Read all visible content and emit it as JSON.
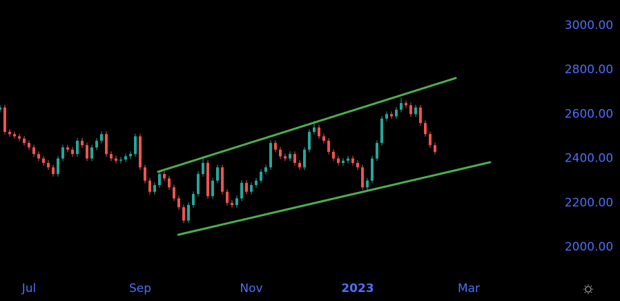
{
  "chart_data": {
    "type": "candlestick",
    "xlim": [
      0,
      114
    ],
    "xticks": [
      {
        "value": 6,
        "label": "Jul"
      },
      {
        "value": 29,
        "label": "Sep"
      },
      {
        "value": 52,
        "label": "Nov"
      },
      {
        "value": 74,
        "label": "2023"
      },
      {
        "value": 97,
        "label": "Mar"
      }
    ],
    "ylim": [
      1757,
      3115
    ],
    "yticks": [
      {
        "value": 2000,
        "label": "2000.00"
      },
      {
        "value": 2200,
        "label": "2200.00"
      },
      {
        "value": 2400,
        "label": "2400.00"
      },
      {
        "value": 2600,
        "label": "2600.00"
      },
      {
        "value": 2800,
        "label": "2800.00"
      },
      {
        "value": 3000,
        "label": "3000.00"
      }
    ],
    "up_color": "#26a69a",
    "down_color": "#ef5350",
    "axis_label_color": "#4d6ff7",
    "trendline_color": "#4caf50",
    "open": [
      2620,
      2630,
      2520,
      2510,
      2500,
      2490,
      2470,
      2450,
      2420,
      2400,
      2380,
      2360,
      2330,
      2400,
      2450,
      2440,
      2420,
      2480,
      2460,
      2400,
      2450,
      2480,
      2510,
      2420,
      2400,
      2390,
      2395,
      2410,
      2420,
      2500,
      2360,
      2300,
      2250,
      2280,
      2330,
      2310,
      2270,
      2220,
      2180,
      2120,
      2190,
      2240,
      2330,
      2380,
      2230,
      2300,
      2360,
      2250,
      2200,
      2190,
      2220,
      2290,
      2250,
      2280,
      2300,
      2340,
      2360,
      2470,
      2440,
      2410,
      2400,
      2420,
      2380,
      2360,
      2440,
      2520,
      2540,
      2500,
      2480,
      2430,
      2400,
      2380,
      2390,
      2400,
      2380,
      2360,
      2270,
      2300,
      2400,
      2470,
      2580,
      2600,
      2590,
      2620,
      2650,
      2640,
      2600,
      2630,
      2560,
      2510,
      2460
    ],
    "high": [
      2642,
      2642,
      2532,
      2522,
      2512,
      2502,
      2482,
      2462,
      2432,
      2412,
      2392,
      2372,
      2412,
      2462,
      2462,
      2452,
      2492,
      2492,
      2472,
      2462,
      2492,
      2522,
      2522,
      2432,
      2412,
      2407,
      2422,
      2432,
      2512,
      2512,
      2372,
      2312,
      2292,
      2342,
      2342,
      2322,
      2282,
      2232,
      2192,
      2202,
      2252,
      2342,
      2410,
      2392,
      2312,
      2372,
      2372,
      2262,
      2212,
      2232,
      2302,
      2302,
      2292,
      2312,
      2352,
      2372,
      2482,
      2482,
      2452,
      2422,
      2432,
      2432,
      2392,
      2452,
      2532,
      2570,
      2552,
      2512,
      2492,
      2442,
      2412,
      2402,
      2412,
      2412,
      2392,
      2372,
      2312,
      2412,
      2482,
      2592,
      2612,
      2612,
      2632,
      2672,
      2662,
      2652,
      2642,
      2642,
      2572,
      2522,
      2472
    ],
    "low": [
      2608,
      2508,
      2498,
      2488,
      2478,
      2458,
      2438,
      2408,
      2388,
      2368,
      2348,
      2318,
      2318,
      2388,
      2428,
      2408,
      2408,
      2448,
      2388,
      2388,
      2438,
      2468,
      2408,
      2388,
      2378,
      2378,
      2383,
      2398,
      2408,
      2348,
      2288,
      2238,
      2238,
      2268,
      2298,
      2258,
      2208,
      2168,
      2108,
      2108,
      2178,
      2228,
      2318,
      2218,
      2218,
      2288,
      2238,
      2188,
      2178,
      2178,
      2208,
      2238,
      2238,
      2268,
      2288,
      2328,
      2348,
      2428,
      2398,
      2388,
      2388,
      2368,
      2348,
      2348,
      2428,
      2508,
      2488,
      2468,
      2418,
      2388,
      2368,
      2368,
      2378,
      2368,
      2348,
      2258,
      2258,
      2288,
      2388,
      2458,
      2568,
      2578,
      2578,
      2608,
      2628,
      2588,
      2588,
      2548,
      2498,
      2448,
      2418
    ],
    "close": [
      2630,
      2520,
      2510,
      2500,
      2490,
      2470,
      2450,
      2420,
      2400,
      2380,
      2360,
      2330,
      2400,
      2450,
      2440,
      2420,
      2480,
      2460,
      2400,
      2450,
      2480,
      2510,
      2420,
      2400,
      2390,
      2395,
      2410,
      2420,
      2500,
      2360,
      2300,
      2250,
      2280,
      2330,
      2310,
      2270,
      2220,
      2180,
      2120,
      2190,
      2240,
      2330,
      2380,
      2230,
      2300,
      2360,
      2250,
      2200,
      2190,
      2220,
      2290,
      2250,
      2280,
      2300,
      2340,
      2360,
      2470,
      2440,
      2410,
      2400,
      2420,
      2380,
      2360,
      2440,
      2520,
      2540,
      2500,
      2480,
      2430,
      2400,
      2380,
      2390,
      2400,
      2380,
      2360,
      2270,
      2300,
      2400,
      2470,
      2580,
      2600,
      2590,
      2620,
      2650,
      2640,
      2600,
      2630,
      2560,
      2510,
      2460,
      2430
    ],
    "trendlines": [
      {
        "x": [
          32.7,
          94.3
        ],
        "y": [
          2340,
          2763
        ]
      },
      {
        "x": [
          36.9,
          101.4
        ],
        "y": [
          2056,
          2383
        ]
      }
    ]
  }
}
